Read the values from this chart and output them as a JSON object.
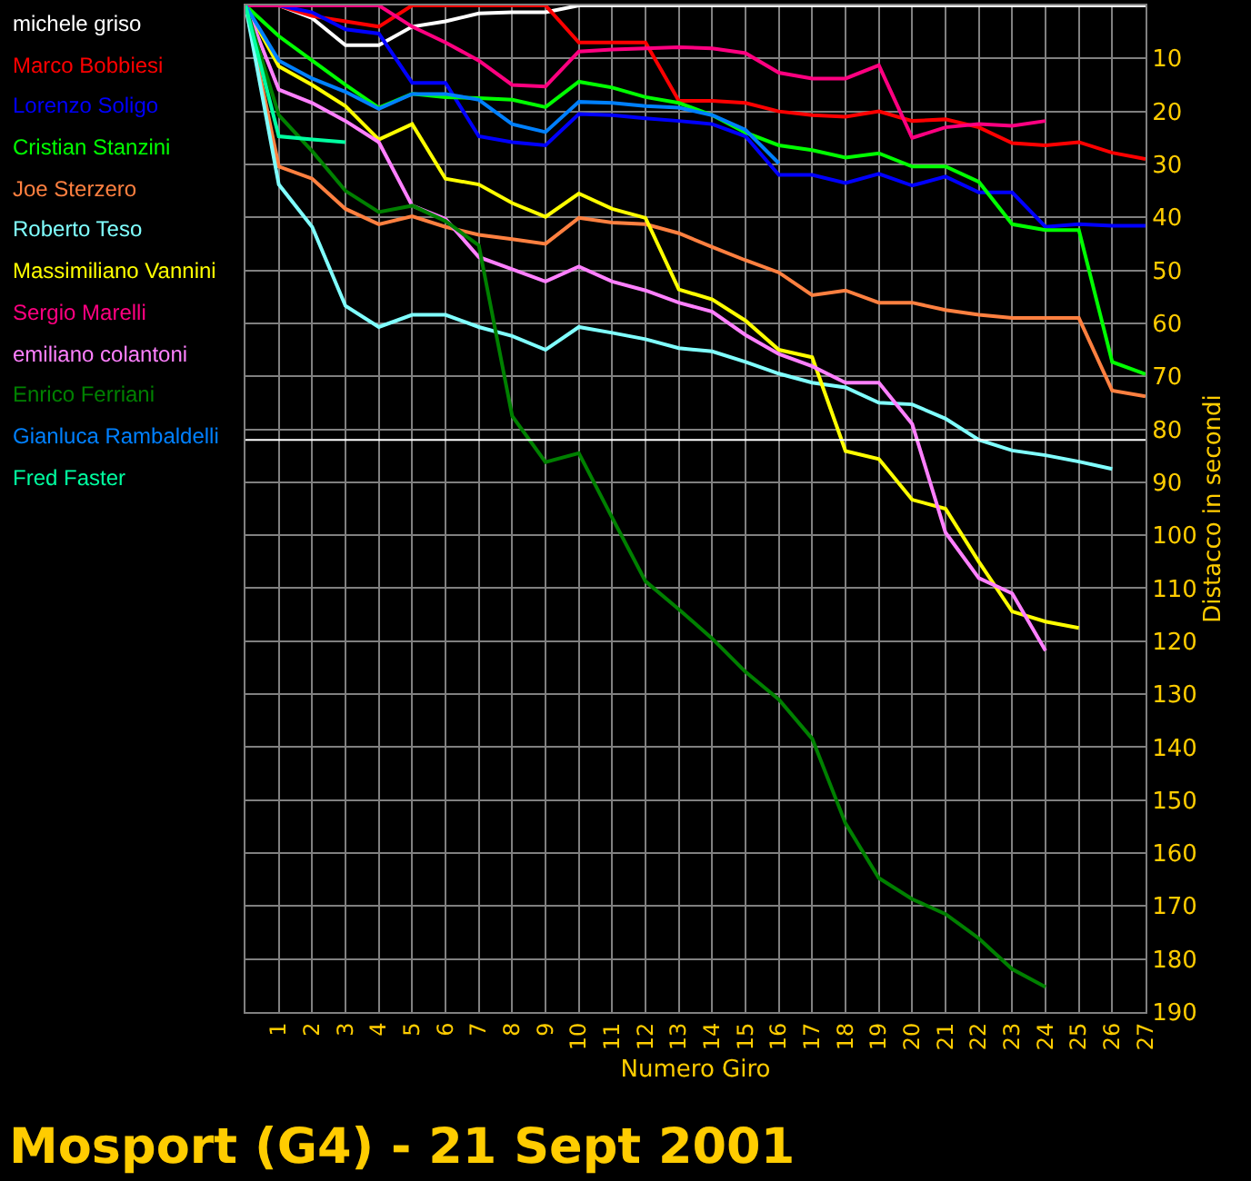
{
  "chart_data": {
    "type": "line",
    "title": "Mosport (G4) - 21 Sept 2001",
    "xlabel": "Numero Giro",
    "ylabel": "Distacco in secondi",
    "x": [
      0,
      1,
      2,
      3,
      4,
      5,
      6,
      7,
      8,
      9,
      10,
      11,
      12,
      13,
      14,
      15,
      16,
      17,
      18,
      19,
      20,
      21,
      22,
      23,
      24,
      25,
      26,
      27
    ],
    "xlim": [
      0,
      27
    ],
    "xticks": [
      1,
      2,
      3,
      4,
      5,
      6,
      7,
      8,
      9,
      10,
      11,
      12,
      13,
      14,
      15,
      16,
      17,
      18,
      19,
      20,
      21,
      22,
      23,
      24,
      25,
      26,
      27
    ],
    "ylim": [
      190,
      0
    ],
    "yticks": [
      10,
      20,
      30,
      40,
      50,
      60,
      70,
      80,
      90,
      100,
      110,
      120,
      130,
      140,
      150,
      160,
      170,
      180,
      190
    ],
    "grid": true,
    "legend": "top left",
    "line_style": "solid",
    "ref_lines": [
      {
        "axis": "y",
        "value": 82,
        "color": "#ffffff"
      }
    ],
    "series": [
      {
        "name": "michele griso",
        "color": "#ffffff",
        "values": [
          0,
          0,
          2.4,
          7.5,
          7.5,
          4,
          3,
          1.5,
          1.3,
          1.3,
          0,
          0,
          0,
          0,
          0,
          0,
          0,
          0,
          0,
          0,
          0,
          0,
          0,
          0,
          0,
          0,
          0,
          0
        ]
      },
      {
        "name": "Marco Bobbiesi",
        "color": "#ff0000",
        "values": [
          0,
          0,
          2,
          3,
          4,
          0,
          0,
          0,
          0,
          0,
          7,
          7,
          7,
          18,
          18,
          18.4,
          20,
          20.7,
          21,
          20,
          21.8,
          21.5,
          23,
          26,
          26.4,
          25.8,
          27.8,
          29
        ]
      },
      {
        "name": "Lorenzo Soligo",
        "color": "#0000ff",
        "values": [
          0,
          0,
          1.3,
          4.5,
          5.3,
          14.6,
          14.6,
          24.7,
          25.8,
          26.4,
          20.5,
          20.7,
          21.3,
          21.8,
          22.4,
          24.7,
          32,
          32,
          33.5,
          31.8,
          34,
          32.3,
          35.3,
          35.3,
          41.8,
          41.3,
          41.6,
          41.6
        ]
      },
      {
        "name": "Cristian Stanzini",
        "color": "#00ff00",
        "values": [
          0,
          5.8,
          10.4,
          15,
          19.3,
          16.7,
          17.3,
          17.5,
          17.8,
          19.2,
          14.4,
          15.5,
          17.3,
          18.4,
          20.7,
          24,
          26.4,
          27.3,
          28.7,
          27.9,
          30.4,
          30.4,
          33.3,
          41.3,
          42.4,
          42.4,
          67.3,
          69.6
        ]
      },
      {
        "name": "Joe Sterzero",
        "color": "#ff8040",
        "values": [
          0,
          30.4,
          32.7,
          38.4,
          41.3,
          39.8,
          41.8,
          43.3,
          44.1,
          45,
          40.1,
          41,
          41.3,
          43,
          45.6,
          48.1,
          50.4,
          54.7,
          53.8,
          56.1,
          56.1,
          57.5,
          58.4,
          59,
          59,
          59,
          72.7,
          73.8
        ]
      },
      {
        "name": "Roberto Teso",
        "color": "#80ffff",
        "values": [
          0,
          33.8,
          41.8,
          56.7,
          60.7,
          58.4,
          58.4,
          60.7,
          62.4,
          65,
          60.7,
          61.8,
          63,
          64.7,
          65.3,
          67.3,
          69.5,
          71.2,
          72.1,
          75,
          75.3,
          78,
          82,
          84,
          84.9,
          86.1,
          87.5,
          null
        ]
      },
      {
        "name": "Massimiliano Vannini",
        "color": "#ffff00",
        "values": [
          0,
          11.5,
          15,
          19,
          25.3,
          22.4,
          32.7,
          33.8,
          37.3,
          39.9,
          35.5,
          38.4,
          40.1,
          53.6,
          55.5,
          59.5,
          65,
          66.4,
          84.1,
          85.6,
          93.3,
          95,
          105,
          114.4,
          116.3,
          117.5,
          null,
          null
        ]
      },
      {
        "name": "Sergio Marelli",
        "color": "#ff0080",
        "values": [
          0,
          0,
          0,
          0,
          0,
          4,
          7,
          10.4,
          15,
          15.3,
          8.7,
          8.3,
          8.1,
          7.9,
          8.1,
          9,
          12.7,
          13.8,
          13.8,
          11.3,
          25,
          23,
          22.4,
          22.7,
          21.8,
          null,
          null,
          null
        ]
      },
      {
        "name": "emiliano colantoni",
        "color": "#ff80ff",
        "values": [
          0,
          15.9,
          18.4,
          21.8,
          25.8,
          37.8,
          40.3,
          47.5,
          49.8,
          52.1,
          49.3,
          52.1,
          53.8,
          56.1,
          57.8,
          62.2,
          65.8,
          68.1,
          71.2,
          71.2,
          79,
          99.5,
          108.1,
          111,
          121.8,
          null,
          null,
          null
        ]
      },
      {
        "name": "Enrico Ferriani",
        "color": "#008000",
        "values": [
          0,
          20.7,
          27.5,
          35,
          39,
          37.8,
          40.7,
          45.3,
          77.5,
          86.2,
          84.5,
          96.7,
          108.7,
          114,
          119.5,
          125.8,
          131,
          138.4,
          154.4,
          164.7,
          168.7,
          171.5,
          176.1,
          181.9,
          185.3,
          null,
          null,
          null
        ]
      },
      {
        "name": "Gianluca Rambaldelli",
        "color": "#0080ff",
        "values": [
          0,
          10.4,
          13.8,
          16.3,
          19.5,
          16.7,
          16.7,
          17.8,
          22.4,
          23.9,
          18.2,
          18.4,
          19,
          19.3,
          20.7,
          23.5,
          29.8,
          null,
          null,
          null,
          null,
          null,
          null,
          null,
          null,
          null,
          null,
          null
        ]
      },
      {
        "name": "Fred Faster",
        "color": "#00ffa0",
        "values": [
          0,
          24.7,
          25.3,
          25.8,
          null,
          null,
          null,
          null,
          null,
          null,
          null,
          null,
          null,
          null,
          null,
          null,
          null,
          null,
          null,
          null,
          null,
          null,
          null,
          null,
          null,
          null,
          null,
          null
        ]
      }
    ]
  }
}
